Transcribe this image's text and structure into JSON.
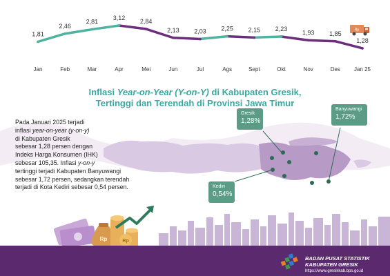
{
  "chart_data": {
    "type": "line",
    "title": "",
    "categories": [
      "Jan",
      "Feb",
      "Mar",
      "Apr",
      "Mei",
      "Jun",
      "Jul",
      "Ags",
      "Sept",
      "Okt",
      "Nov",
      "Des",
      "Jan 25"
    ],
    "values": [
      1.81,
      2.46,
      2.81,
      3.12,
      2.84,
      2.13,
      2.03,
      2.25,
      2.15,
      2.23,
      1.93,
      1.85,
      1.28
    ],
    "value_labels": [
      "1,81",
      "2,46",
      "2,81",
      "3,12",
      "2,84",
      "2,13",
      "2,03",
      "2,25",
      "2,15",
      "2,23",
      "1,93",
      "1,85",
      "1,28"
    ],
    "xlabel": "",
    "ylabel": "",
    "ylim": [
      1.0,
      3.4
    ],
    "grid": false,
    "colors": {
      "rising": "#4fb3a0",
      "falling": "#6b2f7d"
    }
  },
  "map_section": {
    "title_line1_prefix": "Inflasi ",
    "title_line1_italic": "Year-on-Year (Y-on-Y)",
    "title_line1_suffix": " di Kabupaten Gresik,",
    "title_line2": "Tertinggi dan Terendah di Provinsi Jawa Timur"
  },
  "description": {
    "l1": "Pada Januari 2025 terjadi",
    "l2_prefix": "inflasi ",
    "l2_italic": "year-on-year (y-on-y)",
    "l3": "di Kabupaten Gresik",
    "l4": "sebesar 1,28 persen dengan",
    "l5": "Indeks Harga Konsumen (IHK)",
    "l6_prefix": "sebesar 105,35. Inflasi ",
    "l6_italic": "y-on-y",
    "l7": "tertinggi terjadi  Kabupaten Banyuwangi",
    "l8": "sebesar 1,72 persen, sedangkan terendah",
    "l9": "terjadi di Kota Kediri sebesar 0,54 persen."
  },
  "callouts": {
    "gresik": {
      "name": "Gresik",
      "value": "1,28%"
    },
    "banyuwangi": {
      "name": "Banyuwangi",
      "value": "1,72%"
    },
    "kediri": {
      "name": "Kediri",
      "value": "0,54%"
    }
  },
  "footer": {
    "org_line1": "BADAN PUSAT STATISTIK",
    "org_line2": "KABUPATEN GRESIK",
    "url": "https://www.gresikkab.bps.go.id"
  },
  "colors": {
    "teal": "#4fb3a0",
    "purple": "#5b2a6e",
    "map": "#d9c6e0",
    "map_east": "#b79ac6",
    "callout": "#5c9b86",
    "title": "#3aa8a0"
  },
  "icons": [
    "truck-icon",
    "money-bag-icon",
    "coin-stack-icon",
    "arrow-up-icon",
    "bps-logo-icon",
    "city-skyline-icon"
  ]
}
